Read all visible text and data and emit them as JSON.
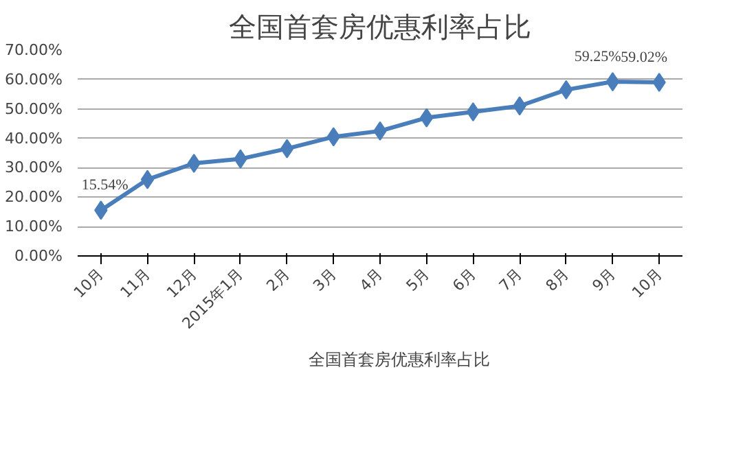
{
  "chart_data": {
    "type": "line",
    "title": "全国首套房优惠利率占比",
    "categories": [
      "10月",
      "11月",
      "12月",
      "2015年1月",
      "2月",
      "3月",
      "4月",
      "5月",
      "6月",
      "7月",
      "8月",
      "9月",
      "10月"
    ],
    "series": [
      {
        "name": "全国首套房优惠利率占比",
        "color": "#4a7ebb",
        "values": [
          15.54,
          26,
          31.5,
          33,
          36.5,
          40.5,
          42.5,
          47,
          49,
          51,
          56.5,
          59.25,
          59.02
        ],
        "value_labels": [
          "15.54%",
          null,
          null,
          null,
          null,
          null,
          null,
          null,
          null,
          null,
          null,
          "59.25%",
          "59.02%"
        ]
      }
    ],
    "ylim": [
      0,
      70
    ],
    "yticks": [
      {
        "value": 0,
        "label": "0.00%"
      },
      {
        "value": 10,
        "label": "10.00%"
      },
      {
        "value": 20,
        "label": "20.00%"
      },
      {
        "value": 30,
        "label": "30.00%"
      },
      {
        "value": 40,
        "label": "40.00%"
      },
      {
        "value": 50,
        "label": "50.00%"
      },
      {
        "value": 60,
        "label": "60.00%"
      },
      {
        "value": 70,
        "label": "70.00%"
      }
    ],
    "grid": "y",
    "legend": "bottom",
    "marker": "diamond",
    "line_style": "solid"
  }
}
